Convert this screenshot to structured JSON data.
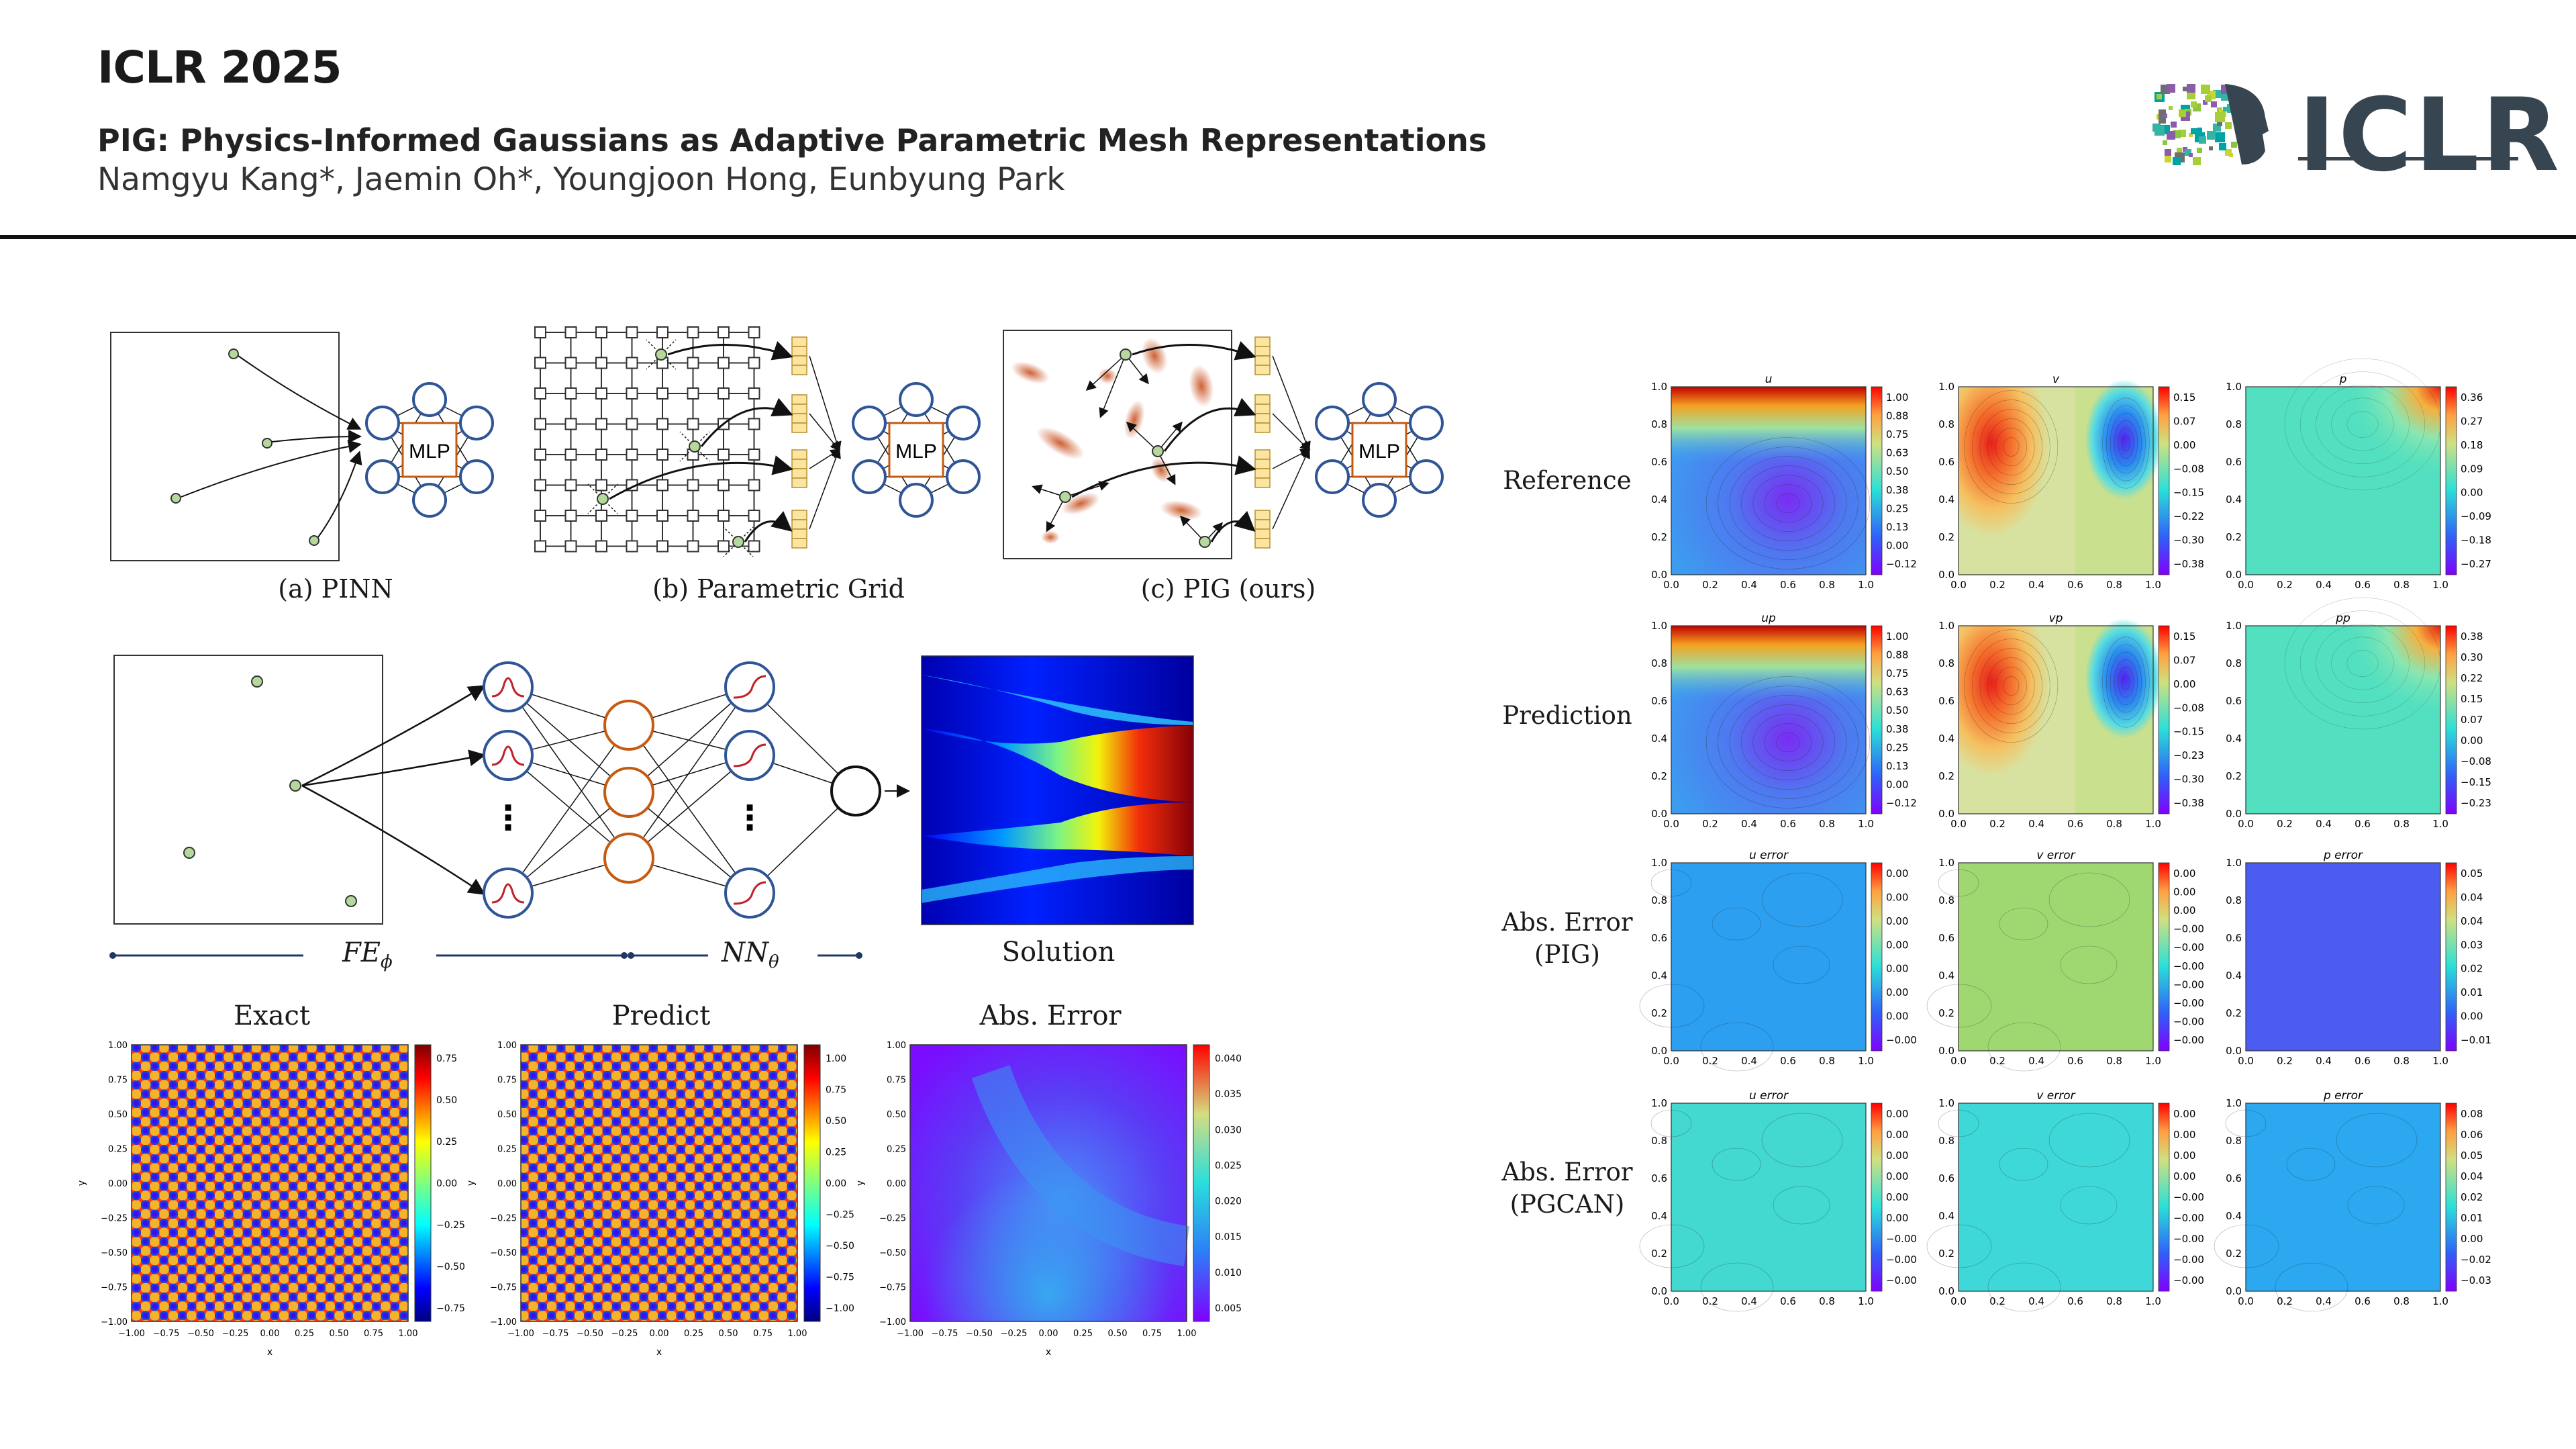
{
  "header": {
    "conference": "ICLR 2025",
    "title": "PIG: Physics-Informed Gaussians as Adaptive Parametric Mesh Representations",
    "authors": "Namgyu Kang*, Jaemin Oh*, Youngjoon Hong, Eunbyung Park",
    "logo_text": "ICLR"
  },
  "fig1": {
    "mlp": "MLP",
    "captions": [
      "(a) PINN",
      "(b) Parametric Grid",
      "(c) PIG (ours)"
    ]
  },
  "fig2": {
    "fe_label": "FE",
    "fe_sub": "ϕ",
    "nn_label": "NN",
    "nn_sub": "θ",
    "solution_label": "Solution",
    "dots": "⋮"
  },
  "fig3": {
    "titles": [
      "Exact",
      "Predict",
      "Abs. Error"
    ],
    "axis_ticks": [
      "−1.00",
      "−0.75",
      "−0.50",
      "−0.25",
      "0.00",
      "0.25",
      "0.50",
      "0.75",
      "1.00"
    ],
    "xlabel": "x",
    "ylabel": "y",
    "colorbars": [
      [
        "0.75",
        "0.50",
        "0.25",
        "0.00",
        "−0.25",
        "−0.50",
        "−0.75"
      ],
      [
        "1.00",
        "0.75",
        "0.50",
        "0.25",
        "0.00",
        "−0.25",
        "−0.50",
        "−0.75",
        "−1.00"
      ],
      [
        "0.040",
        "0.035",
        "0.030",
        "0.025",
        "0.020",
        "0.015",
        "0.010",
        "0.005"
      ]
    ]
  },
  "fig4": {
    "row_labels": [
      [
        "Reference"
      ],
      [
        "Prediction"
      ],
      [
        "Abs. Error",
        "(PIG)"
      ],
      [
        "Abs. Error",
        "(PGCAN)"
      ]
    ],
    "panel_titles": [
      [
        "u",
        "v",
        "p"
      ],
      [
        "up",
        "vp",
        "pp"
      ],
      [
        "u error",
        "v error",
        "p error"
      ],
      [
        "u error",
        "v error",
        "p error"
      ]
    ],
    "axis_ticks": [
      "0.0",
      "0.2",
      "0.4",
      "0.6",
      "0.8",
      "1.0"
    ],
    "colorbars": [
      [
        [
          "1.00",
          "0.88",
          "0.75",
          "0.63",
          "0.50",
          "0.38",
          "0.25",
          "0.13",
          "0.00",
          "−0.12"
        ],
        [
          "0.15",
          "0.07",
          "0.00",
          "−0.08",
          "−0.15",
          "−0.22",
          "−0.30",
          "−0.38"
        ],
        [
          "0.36",
          "0.27",
          "0.18",
          "0.09",
          "0.00",
          "−0.09",
          "−0.18",
          "−0.27"
        ]
      ],
      [
        [
          "1.00",
          "0.88",
          "0.75",
          "0.63",
          "0.50",
          "0.38",
          "0.25",
          "0.13",
          "0.00",
          "−0.12"
        ],
        [
          "0.15",
          "0.07",
          "0.00",
          "−0.08",
          "−0.15",
          "−0.23",
          "−0.30",
          "−0.38"
        ],
        [
          "0.38",
          "0.30",
          "0.22",
          "0.15",
          "0.07",
          "0.00",
          "−0.08",
          "−0.15",
          "−0.23"
        ]
      ],
      [
        [
          "0.00",
          "0.00",
          "0.00",
          "0.00",
          "0.00",
          "0.00",
          "0.00",
          "−0.00"
        ],
        [
          "0.00",
          "0.00",
          "0.00",
          "−0.00",
          "−0.00",
          "−0.00",
          "−0.00",
          "−0.00",
          "−0.00",
          "−0.00"
        ],
        [
          "0.05",
          "0.04",
          "0.04",
          "0.03",
          "0.02",
          "0.01",
          "0.00",
          "−0.01"
        ]
      ],
      [
        [
          "0.00",
          "0.00",
          "0.00",
          "0.00",
          "0.00",
          "0.00",
          "−0.00",
          "−0.00",
          "−0.00"
        ],
        [
          "0.00",
          "0.00",
          "0.00",
          "0.00",
          "−0.00",
          "−0.00",
          "−0.00",
          "−0.00",
          "−0.00"
        ],
        [
          "0.08",
          "0.06",
          "0.05",
          "0.04",
          "0.02",
          "0.01",
          "0.00",
          "−0.02",
          "−0.03"
        ]
      ]
    ]
  }
}
